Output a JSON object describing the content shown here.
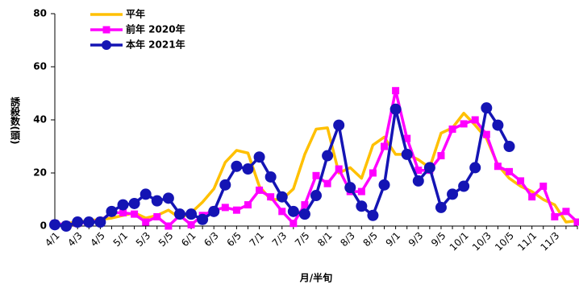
{
  "chart_data": {
    "type": "line",
    "x_label": "月/半旬",
    "y_label": "誘殺数(頭)",
    "categories": [
      "4/1",
      null,
      "4/3",
      null,
      "4/5",
      null,
      "5/1",
      null,
      "5/3",
      null,
      "5/5",
      null,
      "6/1",
      null,
      "6/3",
      null,
      "6/5",
      null,
      "7/1",
      null,
      "7/3",
      null,
      "7/5",
      null,
      "8/1",
      null,
      "8/3",
      null,
      "8/5",
      null,
      "9/1",
      null,
      "9/3",
      null,
      "9/5",
      null,
      "10/1",
      null,
      "10/3",
      null,
      "10/5",
      null,
      "11/1",
      null,
      "11/3",
      null,
      null
    ],
    "series": [
      {
        "name": "平年",
        "color": "#ffc000",
        "marker": "none",
        "values": [
          0.5,
          1,
          1.5,
          2,
          2.5,
          3,
          4,
          5,
          3,
          4,
          6,
          3,
          5,
          9,
          14,
          24,
          28.5,
          27.5,
          15,
          10,
          10,
          14,
          27,
          36.5,
          37,
          20,
          22,
          18,
          30.5,
          33.5,
          27,
          27,
          25,
          22,
          35,
          37,
          42.5,
          38,
          33,
          23,
          18,
          15,
          13,
          10,
          8,
          1.5,
          2
        ]
      },
      {
        "name": "前年 2020年",
        "color": "#ff00ff",
        "marker": "square",
        "values": [
          1,
          0.5,
          1,
          1.5,
          2,
          5,
          5,
          4.5,
          1.5,
          3.5,
          0,
          4,
          0.5,
          4,
          6,
          7,
          6,
          8,
          13.5,
          11,
          5.5,
          1,
          8,
          19,
          16,
          21.5,
          13,
          13,
          20,
          30,
          51,
          33,
          21,
          21,
          26.5,
          36.5,
          38.5,
          40,
          34.5,
          22.5,
          20.5,
          17,
          11,
          15,
          3.5,
          5.5,
          1.5
        ]
      },
      {
        "name": "本年 2021年",
        "color": "#1414b4",
        "marker": "circle",
        "values": [
          0.5,
          0,
          1.5,
          1.5,
          1.5,
          5.5,
          8,
          8.5,
          12,
          9.5,
          10.5,
          4.5,
          4.5,
          2.5,
          5.5,
          15.5,
          22.5,
          21.5,
          26,
          18.5,
          11,
          5.5,
          4.5,
          11.5,
          26.5,
          38,
          14.5,
          7.5,
          4,
          15.5,
          44,
          27,
          17,
          22,
          7,
          12,
          15,
          22,
          44.5,
          38,
          30,
          null,
          null,
          null,
          null,
          null,
          null
        ]
      }
    ],
    "ylim": [
      0,
      80
    ],
    "yticks": [
      0,
      20,
      40,
      60,
      80
    ]
  }
}
